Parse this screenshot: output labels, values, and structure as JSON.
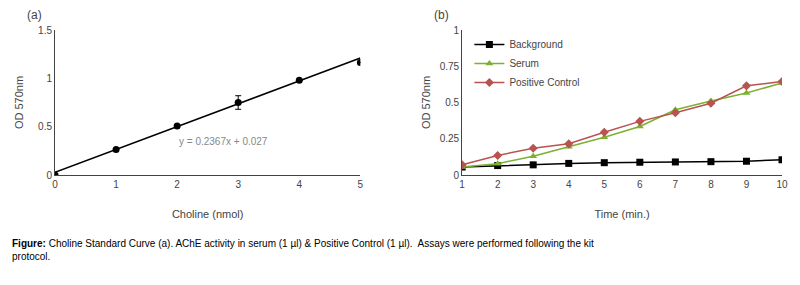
{
  "chart_data": [
    {
      "type": "scatter",
      "title": "(a)",
      "xlabel": "Choline (nmol)",
      "ylabel": "OD 570nm",
      "series": [
        {
          "type": "scatter",
          "marker": "circle",
          "color": "#000000",
          "x": [
            0,
            1,
            2,
            3,
            4,
            5
          ],
          "values": [
            0.0,
            0.264,
            0.507,
            0.75,
            0.98,
            1.165
          ],
          "error": [
            0,
            0,
            0,
            0.07,
            0,
            0
          ]
        },
        {
          "type": "line",
          "color": "#000000",
          "x": [
            0,
            5
          ],
          "values": [
            0.027,
            1.2105
          ]
        }
      ],
      "annotations": [
        {
          "text": "y = 0.2367x + 0.027",
          "x": 2.0,
          "y": 0.27,
          "color": "#888888"
        }
      ],
      "xlim": [
        0,
        5
      ],
      "ylim": [
        0,
        1.5
      ],
      "xticks": [
        0,
        1,
        2,
        3,
        4,
        5
      ],
      "yticks": [
        0,
        0.5,
        1,
        1.5
      ],
      "grid": false
    },
    {
      "type": "line",
      "title": "(b)",
      "xlabel": "Time (min.)",
      "ylabel": "OD 570nm",
      "x": [
        1,
        2,
        3,
        4,
        5,
        6,
        7,
        8,
        9,
        10
      ],
      "series": [
        {
          "name": "Background",
          "color": "#000000",
          "marker": "square",
          "values": [
            0.055,
            0.065,
            0.07,
            0.08,
            0.085,
            0.088,
            0.09,
            0.092,
            0.095,
            0.105
          ]
        },
        {
          "name": "Serum",
          "color": "#7ab230",
          "marker": "triangle-up",
          "values": [
            0.055,
            0.078,
            0.13,
            0.195,
            0.26,
            0.335,
            0.45,
            0.51,
            0.565,
            0.635
          ]
        },
        {
          "name": "Positive Control",
          "color": "#b85450",
          "marker": "diamond",
          "values": [
            0.07,
            0.135,
            0.185,
            0.215,
            0.295,
            0.37,
            0.43,
            0.495,
            0.615,
            0.645
          ]
        }
      ],
      "xlim": [
        1,
        10
      ],
      "ylim": [
        0,
        1
      ],
      "xticks": [
        1,
        2,
        3,
        4,
        5,
        6,
        7,
        8,
        9,
        10
      ],
      "yticks": [
        0,
        0.25,
        0.5,
        0.75,
        1
      ],
      "grid": false,
      "legend": "upper left"
    }
  ],
  "caption": {
    "bold": "Figure:",
    "text": " Choline Standard Curve (a). AChE activity in serum (1 µl) & Positive Control (1 µl).  Assays were performed following the kit\nprotocol."
  }
}
